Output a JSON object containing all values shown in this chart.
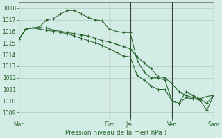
{
  "background_color": "#d4ece6",
  "grid_color": "#a0c8b8",
  "line_color": "#2a6630",
  "text_color": "#2a6630",
  "ylabel_ticks": [
    1009,
    1010,
    1011,
    1012,
    1013,
    1014,
    1015,
    1016,
    1017,
    1018
  ],
  "ylim": [
    1008.5,
    1018.5
  ],
  "xlabel": "Pression niveau de la mer( hPa )",
  "day_labels": [
    "Mar",
    "Dim",
    "Jeu",
    "Ven",
    "Sam"
  ],
  "day_x": [
    0,
    13,
    16,
    22,
    28
  ],
  "total_points": 29,
  "series": [
    [
      1015.3,
      1016.2,
      1016.3,
      1016.3,
      1016.3,
      1016.1,
      1016.0,
      1015.9,
      1015.8,
      1015.7,
      1015.6,
      1015.4,
      1015.2,
      1015.1,
      1014.9,
      1014.7,
      1014.5,
      1013.8,
      1013.3,
      1012.8,
      1012.1,
      1012.0,
      1011.5,
      1010.8,
      1010.5,
      1010.3,
      1010.2,
      1010.4,
      1010.5
    ],
    [
      1015.3,
      1016.2,
      1016.3,
      1016.4,
      1017.0,
      1017.1,
      1017.5,
      1017.8,
      1017.8,
      1017.5,
      1017.2,
      1017.0,
      1016.9,
      1016.2,
      1016.0,
      1015.9,
      1015.9,
      1013.5,
      1012.5,
      1012.0,
      1012.0,
      1011.8,
      1010.0,
      1009.8,
      1010.8,
      1010.5,
      1010.2,
      1009.8,
      1010.5
    ],
    [
      1015.3,
      1016.2,
      1016.3,
      1016.2,
      1016.1,
      1016.0,
      1015.9,
      1015.8,
      1015.6,
      1015.4,
      1015.2,
      1015.0,
      1014.8,
      1014.5,
      1014.2,
      1013.9,
      1013.8,
      1012.2,
      1011.8,
      1011.3,
      1011.0,
      1011.0,
      1010.0,
      1009.8,
      1010.3,
      1010.2,
      1010.1,
      1009.2,
      1010.5
    ]
  ]
}
